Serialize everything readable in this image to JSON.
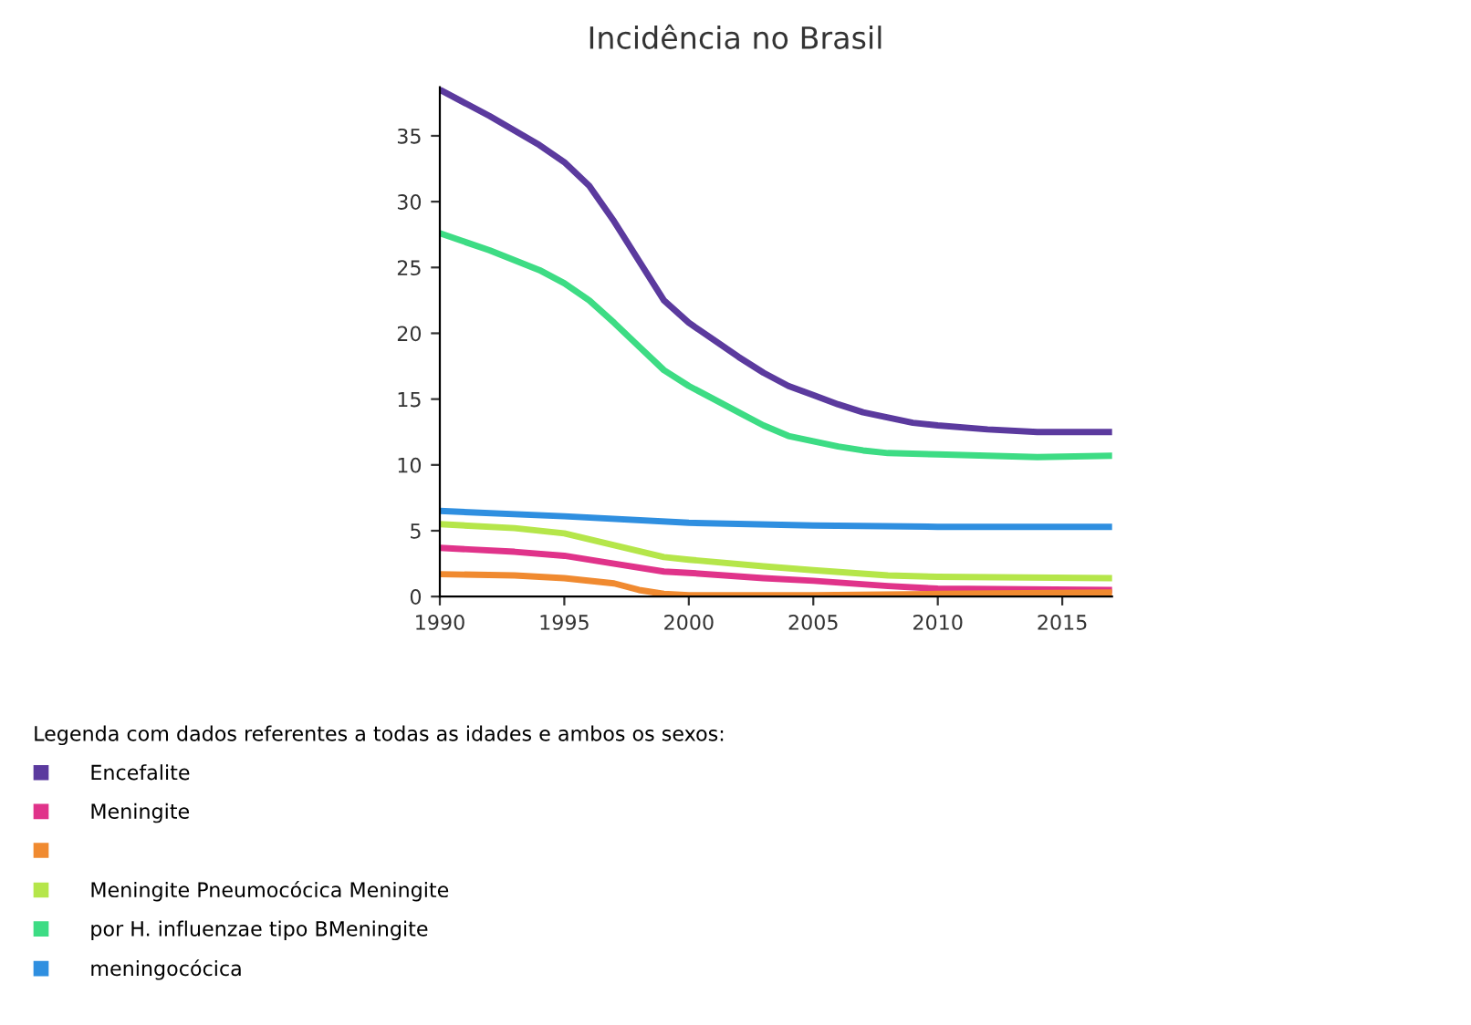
{
  "chart_data": {
    "type": "line",
    "title": "Incidência no Brasil",
    "legend_title": "Legenda com dados referentes a todas as idades e ambos os sexos:",
    "legend": "bottom left",
    "grid": false,
    "marker": "none",
    "line_style": "solid",
    "xlim": [
      1990,
      2017
    ],
    "xticks": [
      1990,
      1995,
      2000,
      2005,
      2010,
      2015
    ],
    "ylim": [
      0,
      38.7
    ],
    "yticks": [
      0,
      5,
      10,
      15,
      20,
      25,
      30,
      35
    ],
    "series": [
      {
        "name": "Encefalite",
        "color": "#5b3a9e",
        "x": [
          1990,
          1992,
          1994,
          1995,
          1996,
          1997,
          1998,
          1999,
          2000,
          2001,
          2002,
          2003,
          2004,
          2005,
          2006,
          2007,
          2008,
          2009,
          2010,
          2012,
          2014,
          2016,
          2017
        ],
        "values": [
          38.5,
          36.5,
          34.3,
          33.0,
          31.2,
          28.5,
          25.5,
          22.5,
          20.8,
          19.5,
          18.2,
          17.0,
          16.0,
          15.3,
          14.6,
          14.0,
          13.6,
          13.2,
          13.0,
          12.7,
          12.5,
          12.5,
          12.5
        ]
      },
      {
        "name": "Meningite",
        "color": "#e0338a",
        "x": [
          1990,
          1993,
          1995,
          1997,
          1999,
          2000,
          2003,
          2005,
          2008,
          2010,
          2017
        ],
        "values": [
          3.7,
          3.4,
          3.1,
          2.5,
          1.9,
          1.8,
          1.4,
          1.2,
          0.8,
          0.6,
          0.5
        ]
      },
      {
        "color": "#f08a30",
        "x": [
          1990,
          1993,
          1995,
          1997,
          1998,
          1999,
          2000,
          2005,
          2010,
          2017
        ],
        "values": [
          1.7,
          1.6,
          1.4,
          1.0,
          0.5,
          0.2,
          0.1,
          0.1,
          0.2,
          0.3
        ]
      },
      {
        "name": "Meningite Pneumocócica Meningite",
        "color": "#b5e64a",
        "x": [
          1990,
          1993,
          1995,
          1997,
          1999,
          2000,
          2003,
          2005,
          2008,
          2010,
          2017
        ],
        "values": [
          5.5,
          5.2,
          4.8,
          3.9,
          3.0,
          2.8,
          2.3,
          2.0,
          1.6,
          1.5,
          1.4
        ]
      },
      {
        "name": "por H. influenzae tipo BMeningite",
        "color": "#3ddc84",
        "x": [
          1990,
          1992,
          1994,
          1995,
          1996,
          1997,
          1998,
          1999,
          2000,
          2001,
          2002,
          2003,
          2004,
          2005,
          2006,
          2007,
          2008,
          2010,
          2012,
          2014,
          2017
        ],
        "values": [
          27.6,
          26.3,
          24.8,
          23.8,
          22.5,
          20.8,
          19.0,
          17.2,
          16.0,
          15.0,
          14.0,
          13.0,
          12.2,
          11.8,
          11.4,
          11.1,
          10.9,
          10.8,
          10.7,
          10.6,
          10.7
        ]
      },
      {
        "name": "meningocócica",
        "color": "#2f8fe0",
        "x": [
          1990,
          1995,
          2000,
          2005,
          2010,
          2017
        ],
        "values": [
          6.5,
          6.1,
          5.6,
          5.4,
          5.3,
          5.3
        ]
      }
    ]
  }
}
